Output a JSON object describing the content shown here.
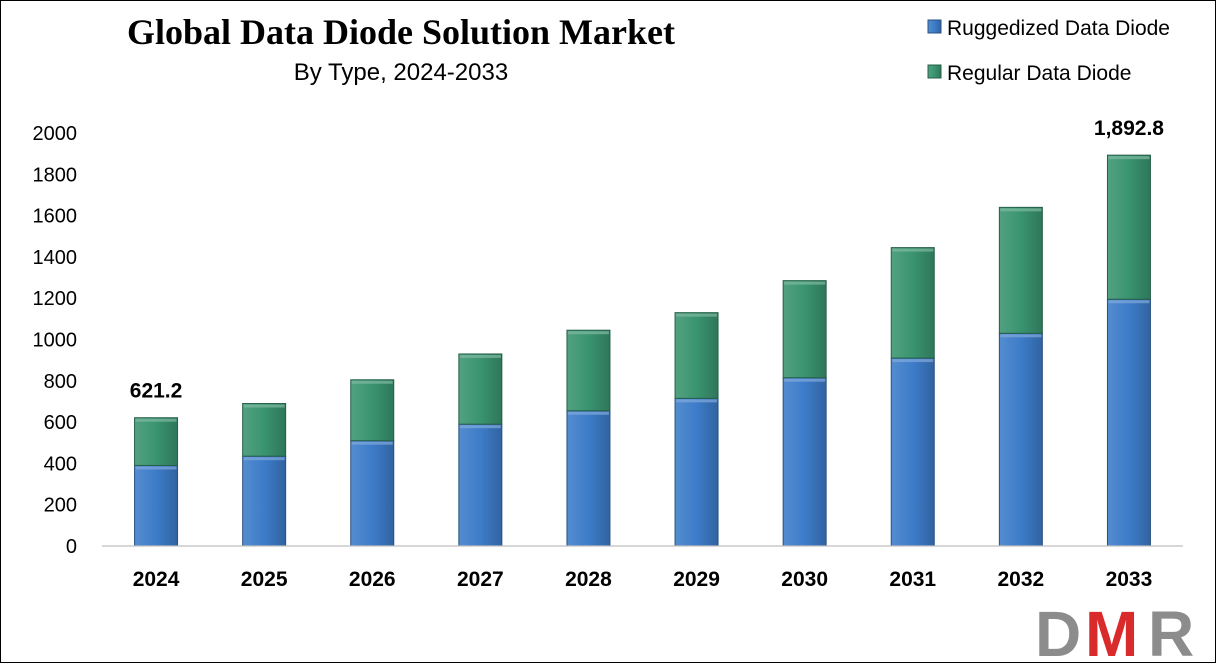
{
  "chart_data": {
    "type": "bar",
    "stacked": true,
    "title": "Global Data Diode Solution Market",
    "subtitle": "By Type, 2024-2033",
    "xlabel": "",
    "ylabel": "",
    "ylim": [
      0,
      2000
    ],
    "yticks": [
      0,
      200,
      400,
      600,
      800,
      1000,
      1200,
      1400,
      1600,
      1800,
      2000
    ],
    "grid": false,
    "legend_position": "top-right",
    "categories": [
      "2024",
      "2025",
      "2026",
      "2027",
      "2028",
      "2029",
      "2030",
      "2031",
      "2032",
      "2033"
    ],
    "series": [
      {
        "name": "Ruggedized Data Diode",
        "color": "#3d7cc9",
        "values": [
          390,
          435,
          510,
          590,
          655,
          715,
          815,
          910,
          1030,
          1195
        ]
      },
      {
        "name": "Regular Data Diode",
        "color": "#3a9470",
        "values": [
          231.2,
          255,
          295,
          340,
          390,
          415,
          470,
          535,
          610,
          697.8
        ]
      }
    ],
    "totals": [
      621.2,
      690,
      805,
      930,
      1045,
      1130,
      1285,
      1445,
      1640,
      1892.8
    ],
    "data_labels": [
      {
        "category": "2024",
        "text": "621.2"
      },
      {
        "category": "2033",
        "text": "1,892.8"
      }
    ]
  },
  "logo": {
    "text": "DMR",
    "colors": [
      "#8c8c8c",
      "#d92b2b"
    ]
  }
}
